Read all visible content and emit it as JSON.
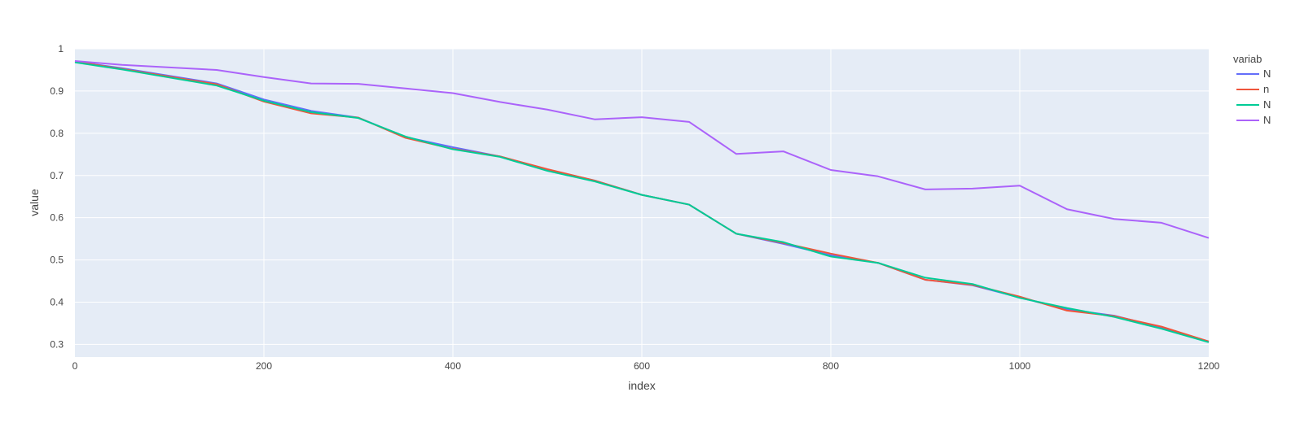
{
  "chart_data": {
    "type": "line",
    "xlabel": "index",
    "ylabel": "value",
    "xlim": [
      0,
      1200
    ],
    "ylim": [
      0.27,
      1.0
    ],
    "x_ticks": [
      0,
      200,
      400,
      600,
      800,
      1000,
      1200
    ],
    "y_ticks": [
      0.3,
      0.4,
      0.5,
      0.6,
      0.7,
      0.8,
      0.9,
      1
    ],
    "grid": true,
    "legend": {
      "title": "variab",
      "placement": "right"
    },
    "x": [
      0,
      50,
      100,
      150,
      200,
      250,
      300,
      350,
      400,
      450,
      500,
      550,
      600,
      650,
      700,
      750,
      800,
      850,
      900,
      950,
      1000,
      1050,
      1100,
      1150,
      1200
    ],
    "series": [
      {
        "name": "N",
        "color": "#636efa",
        "values": [
          0.97,
          0.954,
          0.936,
          0.918,
          0.88,
          0.853,
          0.837,
          0.791,
          0.767,
          0.745,
          0.714,
          0.688,
          0.654,
          0.631,
          0.562,
          0.538,
          0.511,
          0.493,
          0.453,
          0.44,
          0.411,
          0.383,
          0.368,
          0.34,
          0.307
        ]
      },
      {
        "name": "n",
        "color": "#ef553b",
        "values": [
          0.97,
          0.952,
          0.934,
          0.916,
          0.875,
          0.847,
          0.837,
          0.789,
          0.763,
          0.745,
          0.715,
          0.688,
          0.654,
          0.631,
          0.562,
          0.54,
          0.515,
          0.493,
          0.453,
          0.441,
          0.413,
          0.38,
          0.367,
          0.342,
          0.307
        ]
      },
      {
        "name": "N",
        "color": "#00cc96",
        "values": [
          0.968,
          0.951,
          0.932,
          0.913,
          0.877,
          0.85,
          0.836,
          0.792,
          0.762,
          0.744,
          0.711,
          0.686,
          0.654,
          0.631,
          0.562,
          0.542,
          0.508,
          0.493,
          0.458,
          0.443,
          0.41,
          0.386,
          0.365,
          0.337,
          0.305
        ]
      },
      {
        "name": "N",
        "color": "#ab63fa",
        "values": [
          0.971,
          0.962,
          0.956,
          0.95,
          0.933,
          0.918,
          0.917,
          0.906,
          0.895,
          0.874,
          0.856,
          0.833,
          0.838,
          0.827,
          0.751,
          0.757,
          0.713,
          0.698,
          0.667,
          0.669,
          0.676,
          0.62,
          0.597,
          0.588,
          0.552
        ]
      }
    ]
  }
}
